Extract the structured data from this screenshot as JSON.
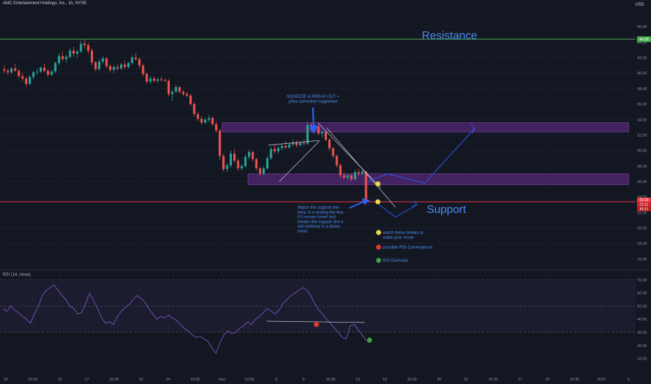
{
  "header": {
    "symbol_title": "AMC Entertainment Holdings, Inc., 1h, NYSE",
    "currency": "USD"
  },
  "rsi_pane": {
    "title": "RSI (14, close)"
  },
  "colors": {
    "background": "#131722",
    "up_candle": "#26a69a",
    "down_candle": "#ef5350",
    "resistance": "#4caf50",
    "support": "#f23645",
    "zone_fill": "#6a2c91",
    "annotation_blue": "#2962ff",
    "text_blue": "#4c8cf0",
    "marker_yellow": "#f0d94a",
    "marker_red": "#e53935",
    "marker_green": "#43a047",
    "rsi_line": "#7e57c2"
  },
  "annotations": {
    "resistance_label": "Resistance",
    "support_label": "Support",
    "squeeze_note": [
      "SQUEEZE & BREAK OUT =",
      "price correction happened"
    ],
    "support_note": [
      "Watch the support line",
      "here. It is testing the line.",
      "If it moves lower and",
      "breaks the support line it",
      "will continue in a down-",
      "trend."
    ],
    "legend": [
      {
        "text": [
          "watch these breaks to",
          "make your move"
        ],
        "color_key": "marker_yellow"
      },
      {
        "text": [
          "possible RSI Convergence"
        ],
        "color_key": "marker_red"
      },
      {
        "text": [
          "RSI Oversold"
        ],
        "color_key": "marker_green"
      }
    ]
  },
  "chart_data": [
    {
      "type": "candlestick",
      "title": "AMC Entertainment Holdings, Inc., 1h, NYSE",
      "y_axis": {
        "unit": "USD",
        "ticks": [
          "46.00",
          "44.00",
          "42.00",
          "40.00",
          "38.00",
          "36.00",
          "34.00",
          "32.00",
          "30.00",
          "28.00",
          "26.00",
          "24.00",
          "22.00",
          "20.00",
          "18.00",
          "16.00"
        ],
        "range": [
          15,
          48
        ]
      },
      "x_axis": {
        "tick_labels": [
          "10",
          "10:30",
          "15",
          "17",
          "10:30",
          "22",
          "24",
          "10:30",
          "Dec",
          "10:30",
          "6",
          "8",
          "10:30",
          "13",
          "15",
          "10:30",
          "20",
          "22",
          "10:30",
          "27",
          "29",
          "10:30",
          "2022",
          "5"
        ]
      },
      "price_labels": [
        "44.38",
        "23.38",
        "23.11",
        "56:51"
      ],
      "levels": {
        "resistance": 44.38,
        "support": 23.38
      },
      "zones": [
        {
          "top": 33.6,
          "bottom": 32.4
        },
        {
          "top": 27.0,
          "bottom": 25.6
        }
      ],
      "series": [
        {
          "values": [
            [
              40.5,
              41.0,
              40.0,
              40.3
            ],
            [
              40.3,
              40.6,
              39.8,
              40.1
            ],
            [
              40.1,
              40.8,
              39.9,
              40.6
            ],
            [
              40.6,
              41.2,
              40.2,
              40.3
            ],
            [
              40.3,
              40.5,
              39.4,
              39.6
            ],
            [
              39.6,
              40.0,
              39.0,
              39.3
            ],
            [
              39.3,
              39.5,
              38.3,
              38.6
            ],
            [
              38.6,
              39.8,
              38.5,
              39.5
            ],
            [
              39.5,
              40.3,
              39.2,
              40.1
            ],
            [
              40.1,
              40.6,
              39.8,
              40.2
            ],
            [
              40.2,
              40.9,
              40.0,
              40.7
            ],
            [
              40.7,
              41.2,
              40.1,
              40.3
            ],
            [
              40.3,
              40.5,
              39.5,
              39.8
            ],
            [
              39.8,
              40.4,
              39.6,
              40.2
            ],
            [
              40.2,
              41.5,
              40.0,
              41.3
            ],
            [
              41.3,
              42.6,
              41.0,
              42.2
            ],
            [
              42.2,
              42.8,
              41.5,
              41.8
            ],
            [
              41.8,
              42.4,
              41.3,
              42.1
            ],
            [
              42.1,
              43.2,
              41.9,
              42.9
            ],
            [
              42.9,
              43.4,
              42.1,
              42.5
            ],
            [
              42.5,
              43.0,
              42.0,
              42.8
            ],
            [
              42.8,
              44.2,
              42.6,
              43.8
            ],
            [
              43.8,
              44.4,
              43.2,
              43.6
            ],
            [
              43.6,
              43.9,
              42.5,
              42.9
            ],
            [
              42.9,
              43.2,
              41.0,
              41.4
            ],
            [
              41.4,
              41.6,
              40.2,
              40.5
            ],
            [
              40.5,
              41.8,
              40.3,
              41.5
            ],
            [
              41.5,
              42.2,
              41.2,
              41.9
            ],
            [
              41.9,
              42.0,
              40.6,
              40.9
            ],
            [
              40.9,
              41.1,
              40.1,
              40.4
            ],
            [
              40.4,
              41.0,
              40.0,
              40.8
            ],
            [
              40.8,
              41.2,
              40.3,
              40.6
            ],
            [
              40.6,
              41.3,
              40.4,
              41.1
            ],
            [
              41.1,
              41.6,
              40.5,
              40.8
            ],
            [
              40.8,
              41.5,
              40.6,
              41.3
            ],
            [
              41.3,
              42.3,
              41.1,
              42.0
            ],
            [
              42.0,
              42.6,
              41.6,
              41.8
            ],
            [
              41.8,
              42.0,
              40.7,
              41.0
            ],
            [
              41.0,
              41.2,
              39.6,
              39.9
            ],
            [
              39.9,
              40.1,
              38.6,
              38.9
            ],
            [
              38.9,
              39.6,
              38.6,
              39.3
            ],
            [
              39.3,
              39.6,
              38.8,
              39.0
            ],
            [
              39.0,
              39.4,
              38.7,
              39.2
            ],
            [
              39.2,
              39.5,
              38.9,
              39.1
            ],
            [
              39.1,
              39.3,
              38.8,
              39.0
            ],
            [
              39.0,
              39.2,
              37.0,
              37.3
            ],
            [
              37.3,
              37.8,
              36.4,
              37.6
            ],
            [
              37.6,
              38.5,
              37.4,
              38.2
            ],
            [
              38.2,
              38.3,
              37.4,
              37.6
            ],
            [
              37.6,
              37.8,
              37.0,
              37.3
            ],
            [
              37.3,
              37.6,
              36.9,
              37.1
            ],
            [
              37.1,
              37.3,
              35.8,
              36.0
            ],
            [
              36.0,
              36.3,
              34.4,
              34.7
            ],
            [
              34.7,
              35.0,
              33.8,
              34.1
            ],
            [
              34.1,
              34.5,
              33.3,
              33.6
            ],
            [
              33.6,
              34.3,
              33.4,
              34.0
            ],
            [
              34.0,
              34.6,
              33.7,
              34.2
            ],
            [
              34.2,
              34.4,
              33.2,
              33.4
            ],
            [
              33.4,
              33.8,
              32.3,
              32.6
            ],
            [
              32.6,
              32.8,
              28.8,
              29.3
            ],
            [
              29.3,
              29.6,
              27.3,
              27.6
            ],
            [
              27.6,
              28.4,
              27.2,
              28.1
            ],
            [
              28.1,
              30.0,
              27.8,
              29.6
            ],
            [
              29.6,
              30.2,
              28.4,
              28.7
            ],
            [
              28.7,
              29.0,
              27.4,
              27.7
            ],
            [
              27.7,
              28.3,
              27.4,
              28.0
            ],
            [
              28.0,
              29.5,
              27.8,
              29.2
            ],
            [
              29.2,
              30.1,
              28.9,
              29.8
            ],
            [
              29.8,
              30.0,
              28.6,
              28.9
            ],
            [
              28.9,
              29.1,
              27.4,
              27.7
            ],
            [
              27.7,
              27.9,
              26.7,
              27.0
            ],
            [
              27.0,
              28.0,
              26.8,
              27.7
            ],
            [
              27.7,
              29.3,
              27.5,
              29.0
            ],
            [
              29.0,
              30.5,
              28.8,
              30.2
            ],
            [
              30.2,
              30.8,
              29.6,
              29.9
            ],
            [
              29.9,
              30.6,
              29.6,
              30.3
            ],
            [
              30.3,
              30.9,
              30.0,
              30.6
            ],
            [
              30.6,
              31.2,
              30.2,
              30.4
            ],
            [
              30.4,
              31.0,
              30.2,
              30.8
            ],
            [
              30.8,
              31.4,
              30.5,
              31.0
            ],
            [
              31.0,
              31.3,
              30.4,
              30.7
            ],
            [
              30.7,
              31.2,
              30.5,
              31.0
            ],
            [
              31.0,
              31.4,
              30.6,
              30.9
            ],
            [
              30.9,
              33.8,
              30.7,
              33.3
            ],
            [
              33.3,
              33.6,
              32.5,
              32.8
            ],
            [
              32.8,
              33.3,
              32.4,
              33.1
            ],
            [
              33.1,
              33.3,
              32.0,
              32.2
            ],
            [
              32.2,
              32.6,
              31.7,
              32.4
            ],
            [
              32.4,
              32.5,
              31.2,
              31.4
            ],
            [
              31.4,
              31.6,
              30.0,
              30.3
            ],
            [
              30.3,
              30.5,
              29.0,
              29.3
            ],
            [
              29.3,
              29.5,
              27.8,
              28.1
            ],
            [
              28.1,
              28.4,
              26.5,
              26.8
            ],
            [
              26.8,
              27.2,
              26.3,
              26.5
            ],
            [
              26.5,
              27.0,
              26.2,
              26.8
            ],
            [
              26.8,
              27.1,
              26.0,
              26.3
            ],
            [
              26.3,
              27.5,
              26.2,
              27.2
            ],
            [
              27.2,
              27.6,
              26.7,
              27.0
            ],
            [
              27.0,
              27.5,
              26.8,
              27.3
            ],
            [
              27.3,
              27.4,
              23.0,
              23.3
            ]
          ]
        }
      ]
    },
    {
      "type": "line",
      "title": "RSI (14, close)",
      "y_axis": {
        "ticks": [
          "70.00",
          "60.00",
          "50.00",
          "40.00",
          "30.00",
          "20.00",
          "10.00"
        ],
        "range": [
          5,
          72
        ]
      },
      "levels": {
        "upper": 70,
        "middle": 50,
        "lower": 30
      },
      "series": [
        {
          "name": "RSI (14, close)",
          "values": [
            48,
            46,
            50,
            47,
            45,
            42,
            40,
            37,
            44,
            50,
            58,
            62,
            64,
            66,
            62,
            58,
            55,
            50,
            48,
            44,
            45,
            52,
            60,
            54,
            48,
            41,
            37,
            38,
            36,
            42,
            46,
            49,
            51,
            55,
            58,
            56,
            53,
            48,
            44,
            40,
            42,
            41,
            43,
            41,
            39,
            36,
            33,
            31,
            28,
            26,
            27,
            25,
            23,
            18,
            14,
            22,
            28,
            31,
            29,
            30,
            33,
            35,
            38,
            36,
            40,
            42,
            45,
            48,
            46,
            44,
            47,
            52,
            55,
            58,
            60,
            62,
            64,
            62,
            58,
            52,
            47,
            44,
            40,
            37,
            33,
            30,
            26,
            25,
            35,
            36,
            32,
            28,
            24
          ]
        }
      ],
      "markers": [
        {
          "label": "possible RSI Convergence",
          "value": 36
        },
        {
          "label": "RSI Oversold",
          "value": 24
        }
      ]
    }
  ]
}
